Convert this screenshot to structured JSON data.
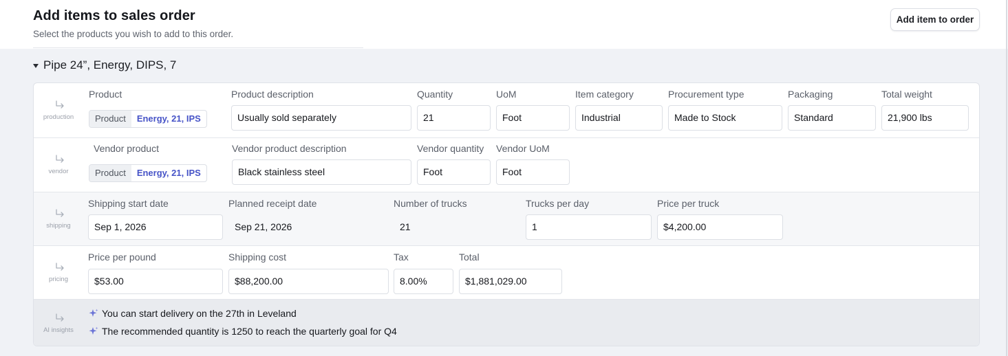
{
  "header": {
    "title": "Add items to sales order",
    "subtitle": "Select the products you wish to add to this order.",
    "add_button": "Add item to order"
  },
  "group": {
    "title": "Pipe 24”, Energy, DIPS, 7"
  },
  "production": {
    "row_label": "production",
    "labels": {
      "product": "Product",
      "description": "Product description",
      "quantity": "Quantity",
      "uom": "UoM",
      "category": "Item category",
      "procurement": "Procurement type",
      "packaging": "Packaging",
      "weight": "Total weight"
    },
    "product_chip": {
      "key": "Product",
      "value": "Energy, 21, IPS"
    },
    "values": {
      "description": "Usually sold separately",
      "quantity": "21",
      "uom": "Foot",
      "category": "Industrial",
      "procurement": "Made to Stock",
      "packaging": "Standard",
      "weight": "21,900 lbs"
    }
  },
  "vendor": {
    "row_label": "vendor",
    "labels": {
      "product": "Vendor product",
      "description": "Vendor product description",
      "quantity": "Vendor quantity",
      "uom": "Vendor UoM"
    },
    "product_chip": {
      "key": "Product",
      "value": "Energy, 21, IPS"
    },
    "values": {
      "description": "Black stainless steel",
      "quantity": "Foot",
      "uom": "Foot"
    }
  },
  "shipping": {
    "row_label": "shipping",
    "labels": {
      "start": "Shipping start date",
      "receipt": "Planned receipt date",
      "trucks": "Number of trucks",
      "per_day": "Trucks per day",
      "price_truck": "Price per truck"
    },
    "values": {
      "start": "Sep 1, 2026",
      "receipt": "Sep 21, 2026",
      "trucks": "21",
      "per_day": "1",
      "price_truck": "$4,200.00"
    }
  },
  "pricing": {
    "row_label": "pricing",
    "labels": {
      "price_pound": "Price per pound",
      "shipping_cost": "Shipping cost",
      "tax": "Tax",
      "total": "Total"
    },
    "values": {
      "price_pound": "$53.00",
      "shipping_cost": "$88,200.00",
      "tax": "8.00%",
      "total": "$1,881,029.00"
    }
  },
  "ai": {
    "row_label": "AI insights",
    "insights": [
      "You can start delivery on the 27th in Leveland",
      "The recommended quantity is 1250 to reach the quarterly goal for Q4"
    ]
  },
  "colors": {
    "accent": "#4653c7",
    "sparkle": "#6b74d6",
    "background": "#f0f2f6"
  },
  "icons": {
    "row_icon": "arrow-turn-down-right-icon",
    "insight_icon": "sparkle-icon",
    "group_toggle": "caret-down-icon"
  }
}
